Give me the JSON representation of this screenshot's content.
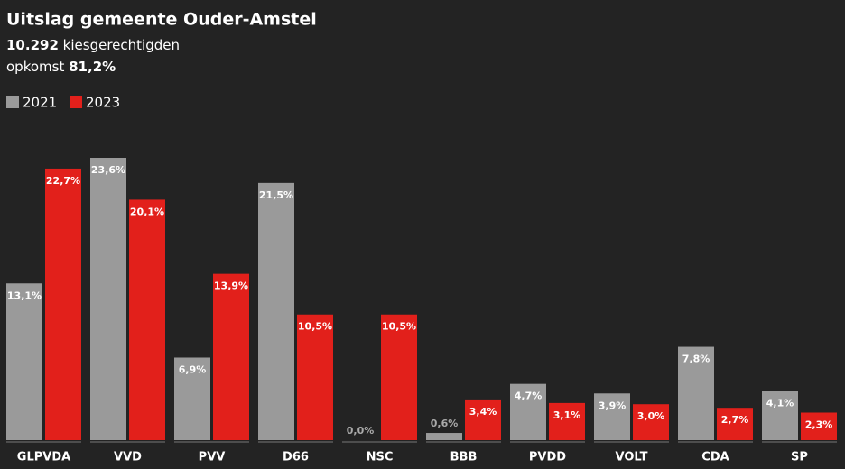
{
  "chart_data": {
    "type": "bar",
    "title": "Uitslag gemeente Ouder-Amstel",
    "electorate": "10.292",
    "electorate_label": "kiesgerechtigden",
    "turnout_label": "opkomst",
    "turnout": "81,2%",
    "categories": [
      "GLPVDA",
      "VVD",
      "PVV",
      "D66",
      "NSC",
      "BBB",
      "PVDD",
      "VOLT",
      "CDA",
      "SP"
    ],
    "series": [
      {
        "name": "2021",
        "color": "#9a9a9a",
        "values": [
          13.1,
          23.6,
          6.9,
          21.5,
          0.0,
          0.6,
          4.7,
          3.9,
          7.8,
          4.1
        ],
        "value_labels": [
          "13,1%",
          "23,6%",
          "6,9%",
          "21,5%",
          "0,0%",
          "0,6%",
          "4,7%",
          "3,9%",
          "7,8%",
          "4,1%"
        ]
      },
      {
        "name": "2023",
        "color": "#e2201b",
        "values": [
          22.7,
          20.1,
          13.9,
          10.5,
          10.5,
          3.4,
          3.1,
          3.0,
          2.7,
          2.3
        ],
        "value_labels": [
          "22,7%",
          "20,1%",
          "13,9%",
          "10,5%",
          "10,5%",
          "3,4%",
          "3,1%",
          "3,0%",
          "2,7%",
          "2,3%"
        ]
      }
    ]
  }
}
